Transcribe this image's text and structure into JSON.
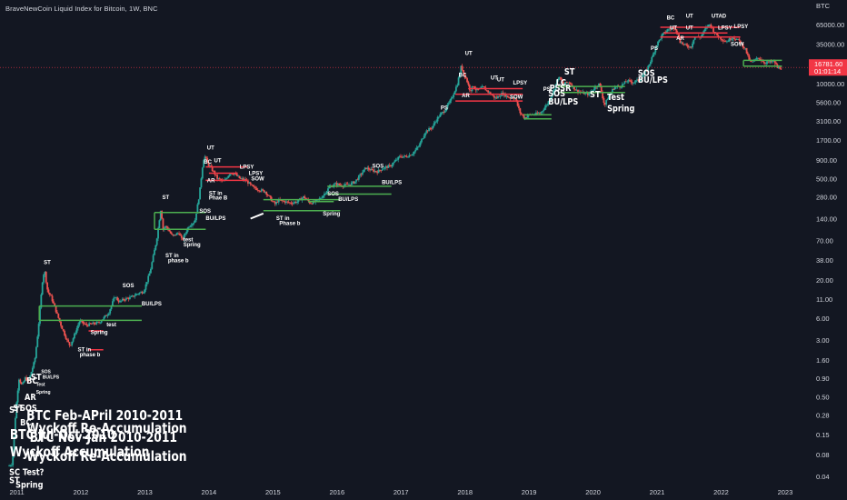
{
  "header": {
    "title": "BraveNewCoin Liquid Index for Bitcoin, 1W, BNC"
  },
  "chart_data": {
    "type": "candlestick",
    "title": "BraveNewCoin Liquid Index for Bitcoin, 1W, BNC",
    "y_scale": "log",
    "ylim": [
      0.03,
      95000
    ],
    "xlim": [
      2010.85,
      2023.2
    ],
    "currency": "BTC",
    "y_ticks": [
      "65000.00",
      "35000.00",
      "10000.00",
      "5600.00",
      "3100.00",
      "1700.00",
      "900.00",
      "500.00",
      "280.00",
      "140.00",
      "70.00",
      "38.00",
      "20.00",
      "11.00",
      "6.00",
      "3.00",
      "1.60",
      "0.90",
      "0.50",
      "0.28",
      "0.15",
      "0.08",
      "0.04"
    ],
    "x_ticks": [
      "2011",
      "2012",
      "2013",
      "2014",
      "2015",
      "2016",
      "2017",
      "2018",
      "2019",
      "2020",
      "2021",
      "2022",
      "2023"
    ],
    "x_tick_values": [
      2011,
      2012,
      2013,
      2014,
      2015,
      2016,
      2017,
      2018,
      2019,
      2020,
      2021,
      2022,
      2023
    ],
    "last_price": "16781.60",
    "countdown": "01:01:14",
    "price_path": [
      [
        2010.88,
        0.055
      ],
      [
        2010.95,
        0.06
      ],
      [
        2011.0,
        0.3
      ],
      [
        2011.05,
        0.9
      ],
      [
        2011.1,
        0.7
      ],
      [
        2011.15,
        0.9
      ],
      [
        2011.2,
        0.8
      ],
      [
        2011.3,
        1.6
      ],
      [
        2011.35,
        4
      ],
      [
        2011.42,
        20
      ],
      [
        2011.45,
        28
      ],
      [
        2011.5,
        14
      ],
      [
        2011.55,
        12
      ],
      [
        2011.6,
        9
      ],
      [
        2011.7,
        5
      ],
      [
        2011.8,
        3
      ],
      [
        2011.85,
        2.5
      ],
      [
        2011.9,
        3.2
      ],
      [
        2012.0,
        5.5
      ],
      [
        2012.1,
        4.8
      ],
      [
        2012.2,
        5
      ],
      [
        2012.3,
        5.2
      ],
      [
        2012.45,
        7
      ],
      [
        2012.55,
        12
      ],
      [
        2012.62,
        10
      ],
      [
        2012.7,
        11
      ],
      [
        2012.8,
        11.5
      ],
      [
        2012.9,
        13
      ],
      [
        2013.0,
        14
      ],
      [
        2013.1,
        26
      ],
      [
        2013.2,
        70
      ],
      [
        2013.27,
        200
      ],
      [
        2013.3,
        100
      ],
      [
        2013.35,
        110
      ],
      [
        2013.45,
        80
      ],
      [
        2013.55,
        90
      ],
      [
        2013.6,
        70
      ],
      [
        2013.7,
        110
      ],
      [
        2013.8,
        130
      ],
      [
        2013.87,
        300
      ],
      [
        2013.93,
        900
      ],
      [
        2013.96,
        1000
      ],
      [
        2014.0,
        800
      ],
      [
        2014.05,
        700
      ],
      [
        2014.1,
        600
      ],
      [
        2014.15,
        500
      ],
      [
        2014.25,
        450
      ],
      [
        2014.35,
        600
      ],
      [
        2014.42,
        580
      ],
      [
        2014.5,
        500
      ],
      [
        2014.6,
        470
      ],
      [
        2014.7,
        380
      ],
      [
        2014.8,
        350
      ],
      [
        2014.9,
        330
      ],
      [
        2015.0,
        250
      ],
      [
        2015.05,
        220
      ],
      [
        2015.1,
        250
      ],
      [
        2015.2,
        240
      ],
      [
        2015.3,
        230
      ],
      [
        2015.4,
        240
      ],
      [
        2015.5,
        280
      ],
      [
        2015.6,
        230
      ],
      [
        2015.7,
        240
      ],
      [
        2015.8,
        290
      ],
      [
        2015.9,
        380
      ],
      [
        2016.0,
        420
      ],
      [
        2016.1,
        400
      ],
      [
        2016.2,
        410
      ],
      [
        2016.3,
        450
      ],
      [
        2016.4,
        580
      ],
      [
        2016.47,
        700
      ],
      [
        2016.55,
        650
      ],
      [
        2016.65,
        620
      ],
      [
        2016.75,
        700
      ],
      [
        2016.85,
        740
      ],
      [
        2016.95,
        900
      ],
      [
        2017.0,
        1000
      ],
      [
        2017.1,
        1000
      ],
      [
        2017.2,
        1100
      ],
      [
        2017.3,
        1400
      ],
      [
        2017.4,
        2200
      ],
      [
        2017.5,
        2500
      ],
      [
        2017.6,
        3500
      ],
      [
        2017.7,
        4300
      ],
      [
        2017.8,
        6000
      ],
      [
        2017.9,
        10000
      ],
      [
        2017.96,
        17500
      ],
      [
        2018.0,
        14000
      ],
      [
        2018.05,
        11000
      ],
      [
        2018.1,
        8000
      ],
      [
        2018.15,
        9500
      ],
      [
        2018.2,
        8000
      ],
      [
        2018.3,
        9000
      ],
      [
        2018.4,
        7500
      ],
      [
        2018.5,
        6300
      ],
      [
        2018.6,
        7400
      ],
      [
        2018.7,
        6500
      ],
      [
        2018.8,
        6400
      ],
      [
        2018.88,
        4000
      ],
      [
        2018.95,
        3400
      ],
      [
        2019.0,
        3700
      ],
      [
        2019.1,
        3800
      ],
      [
        2019.2,
        4000
      ],
      [
        2019.3,
        5200
      ],
      [
        2019.4,
        8000
      ],
      [
        2019.48,
        12500
      ],
      [
        2019.55,
        10000
      ],
      [
        2019.65,
        10500
      ],
      [
        2019.75,
        8200
      ],
      [
        2019.85,
        7500
      ],
      [
        2019.95,
        7200
      ],
      [
        2020.05,
        9000
      ],
      [
        2020.12,
        10000
      ],
      [
        2020.2,
        5000
      ],
      [
        2020.25,
        6500
      ],
      [
        2020.35,
        9000
      ],
      [
        2020.45,
        9300
      ],
      [
        2020.55,
        11000
      ],
      [
        2020.65,
        10500
      ],
      [
        2020.75,
        11500
      ],
      [
        2020.85,
        15000
      ],
      [
        2020.95,
        24000
      ],
      [
        2021.0,
        33000
      ],
      [
        2021.1,
        47000
      ],
      [
        2021.2,
        57000
      ],
      [
        2021.3,
        60000
      ],
      [
        2021.38,
        38000
      ],
      [
        2021.45,
        34000
      ],
      [
        2021.55,
        32000
      ],
      [
        2021.6,
        44000
      ],
      [
        2021.7,
        44000
      ],
      [
        2021.8,
        62000
      ],
      [
        2021.85,
        66000
      ],
      [
        2021.92,
        50000
      ],
      [
        2022.0,
        43000
      ],
      [
        2022.1,
        38000
      ],
      [
        2022.2,
        44000
      ],
      [
        2022.3,
        39000
      ],
      [
        2022.4,
        30000
      ],
      [
        2022.45,
        22000
      ],
      [
        2022.5,
        19500
      ],
      [
        2022.6,
        23000
      ],
      [
        2022.7,
        19500
      ],
      [
        2022.8,
        19800
      ],
      [
        2022.85,
        20500
      ],
      [
        2022.9,
        16500
      ],
      [
        2022.95,
        16781
      ]
    ]
  },
  "annotations": {
    "labels": [
      {
        "text": "BC",
        "x": 2013.92,
        "y": 800
      },
      {
        "text": "UT",
        "x": 2013.97,
        "y": 1250
      },
      {
        "text": "UT",
        "x": 2014.08,
        "y": 830
      },
      {
        "text": "AR",
        "x": 2013.97,
        "y": 440
      },
      {
        "text": "ST in",
        "x": 2014.0,
        "y": 295
      },
      {
        "text": "Phae B",
        "x": 2014.0,
        "y": 255
      },
      {
        "text": "LPSY",
        "x": 2014.48,
        "y": 680
      },
      {
        "text": "LPSY",
        "x": 2014.62,
        "y": 560
      },
      {
        "text": "SOW",
        "x": 2014.66,
        "y": 470
      },
      {
        "text": "ST",
        "x": 2013.27,
        "y": 260
      },
      {
        "text": "SOS",
        "x": 2013.85,
        "y": 170
      },
      {
        "text": "BU/LPS",
        "x": 2013.95,
        "y": 135
      },
      {
        "text": "test",
        "x": 2013.6,
        "y": 68
      },
      {
        "text": "Spring",
        "x": 2013.6,
        "y": 58
      },
      {
        "text": "ST in",
        "x": 2013.32,
        "y": 41
      },
      {
        "text": "phase b",
        "x": 2013.36,
        "y": 35
      },
      {
        "text": "ST in",
        "x": 2015.05,
        "y": 135
      },
      {
        "text": "Phase b",
        "x": 2015.1,
        "y": 115
      },
      {
        "text": "Spring",
        "x": 2015.78,
        "y": 155
      },
      {
        "text": "SOS",
        "x": 2015.85,
        "y": 290
      },
      {
        "text": "BU/LPS",
        "x": 2016.02,
        "y": 245
      },
      {
        "text": "SOS",
        "x": 2016.55,
        "y": 700
      },
      {
        "text": "BU/LPS",
        "x": 2016.7,
        "y": 420
      },
      {
        "text": "ST",
        "x": 2011.42,
        "y": 33
      },
      {
        "text": "SOS",
        "x": 2012.65,
        "y": 16
      },
      {
        "text": "BU/LPS",
        "x": 2012.95,
        "y": 9
      },
      {
        "text": "test",
        "x": 2012.4,
        "y": 4.6
      },
      {
        "text": "Spring",
        "x": 2012.15,
        "y": 3.6
      },
      {
        "text": "ST in",
        "x": 2011.95,
        "y": 2.1
      },
      {
        "text": "phase b",
        "x": 2011.98,
        "y": 1.8
      },
      {
        "text": "UT",
        "x": 2018.0,
        "y": 25000
      },
      {
        "text": "BC",
        "x": 2017.9,
        "y": 12500
      },
      {
        "text": "AR",
        "x": 2017.95,
        "y": 6500
      },
      {
        "text": "UT",
        "x": 2018.4,
        "y": 11500
      },
      {
        "text": "UT",
        "x": 2018.5,
        "y": 10800
      },
      {
        "text": "LPSY",
        "x": 2018.75,
        "y": 9800
      },
      {
        "text": "SOW",
        "x": 2018.7,
        "y": 6300
      },
      {
        "text": "PS",
        "x": 2017.62,
        "y": 4400
      },
      {
        "text": "PS",
        "x": 2019.22,
        "y": 8000
      },
      {
        "text": "PS",
        "x": 2020.9,
        "y": 29000
      },
      {
        "text": "BC",
        "x": 2021.15,
        "y": 77000
      },
      {
        "text": "UT",
        "x": 2021.45,
        "y": 81000
      },
      {
        "text": "UTAD",
        "x": 2021.85,
        "y": 81000
      },
      {
        "text": "LPSY",
        "x": 2022.2,
        "y": 58000
      },
      {
        "text": "AR",
        "x": 2021.3,
        "y": 40000
      },
      {
        "text": "SOW",
        "x": 2022.15,
        "y": 33000
      },
      {
        "text": "UT",
        "x": 2021.2,
        "y": 56000
      },
      {
        "text": "UT",
        "x": 2021.45,
        "y": 56000
      },
      {
        "text": "LPSY",
        "x": 2021.95,
        "y": 56000
      }
    ],
    "big_labels": [
      {
        "text": "ST",
        "x": 2019.55,
        "y": 13500
      },
      {
        "text": "LC",
        "x": 2019.42,
        "y": 9500
      },
      {
        "text": "PSSR",
        "x": 2019.32,
        "y": 8000
      },
      {
        "text": "SOS",
        "x": 2019.3,
        "y": 6700
      },
      {
        "text": "BU/LPS",
        "x": 2019.3,
        "y": 5200
      },
      {
        "text": "ST",
        "x": 2019.95,
        "y": 6500
      },
      {
        "text": "Test",
        "x": 2020.22,
        "y": 6000
      },
      {
        "text": "Spring",
        "x": 2020.22,
        "y": 4200
      },
      {
        "text": "SOS",
        "x": 2020.7,
        "y": 12800
      },
      {
        "text": "BU/LPS",
        "x": 2020.7,
        "y": 10300
      },
      {
        "text": "BTC Feb-APril 2010-2011",
        "x": 2011.15,
        "y": 0.24
      },
      {
        "text": "Wyckoff Re-Accumulation",
        "x": 2011.15,
        "y": 0.16
      },
      {
        "text": "BTC Nov-Jan 2010-2011",
        "x": 2011.2,
        "y": 0.12
      },
      {
        "text": "Wyckoff Re-Accumulation",
        "x": 2011.15,
        "y": 0.065
      },
      {
        "text": "BTC Jul-Oct 2010",
        "x": 2010.89,
        "y": 0.13
      },
      {
        "text": "Wyckoff Accumulation",
        "x": 2010.89,
        "y": 0.075
      },
      {
        "text": "ST",
        "x": 2010.88,
        "y": 0.3
      },
      {
        "text": "ST",
        "x": 2010.94,
        "y": 0.32
      },
      {
        "text": "SOS",
        "x": 2011.05,
        "y": 0.32
      },
      {
        "text": "BC",
        "x": 2011.05,
        "y": 0.2
      },
      {
        "text": "AR",
        "x": 2011.12,
        "y": 0.45
      },
      {
        "text": "BC",
        "x": 2011.15,
        "y": 0.75
      },
      {
        "text": "ST",
        "x": 2011.22,
        "y": 0.85
      },
      {
        "text": "SC Test?",
        "x": 2010.88,
        "y": 0.042
      },
      {
        "text": "ST",
        "x": 2010.88,
        "y": 0.032
      },
      {
        "text": "Spring",
        "x": 2010.98,
        "y": 0.028
      }
    ],
    "small_labels": [
      {
        "text": "Test",
        "x": 2011.3,
        "y": 0.7
      },
      {
        "text": "Spring",
        "x": 2011.3,
        "y": 0.55
      },
      {
        "text": "SOS",
        "x": 2011.38,
        "y": 1.05
      },
      {
        "text": "BU/LPS",
        "x": 2011.4,
        "y": 0.88
      }
    ]
  },
  "colors": {
    "background": "#131722",
    "up": "#26a69a",
    "down": "#ef5350",
    "resistance": "#f23645",
    "support": "#4caf50",
    "text": "#d1d4dc",
    "price_line": "#f23645",
    "grid": "#1e222d"
  }
}
